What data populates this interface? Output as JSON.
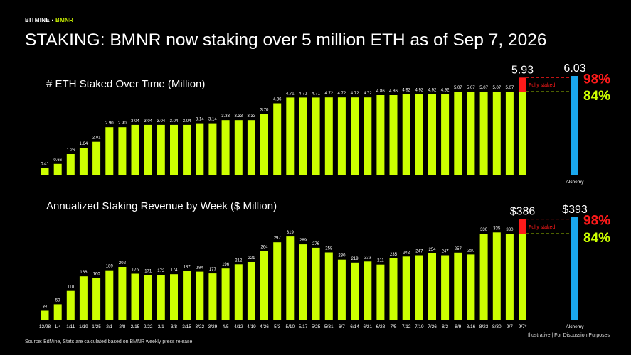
{
  "header": {
    "brand": "BITMINE",
    "brand_sep": " · ",
    "brand_sub": "BMNR",
    "title": "STAKING: BMNR now staking over 5 million ETH as of Sep 7, 2026"
  },
  "footer": {
    "source": "Source: BitMine, Stats are calculated based on BMNR weekly press release.",
    "note": "Illustrative  |  For Discussion Purposes"
  },
  "colors": {
    "bar": "#ccff00",
    "alchemy": "#1aa7ec",
    "fully_staked": "#ff1a1a",
    "pct_84": "#ccff00",
    "pct_98": "#ff1a1a"
  },
  "chart_data": [
    {
      "type": "bar",
      "title": "# ETH Staked Over Time (Million)",
      "categories": [
        "12/28",
        "1/4",
        "1/11",
        "1/19",
        "1/25",
        "2/1",
        "2/8",
        "2/15",
        "2/22",
        "3/1",
        "3/8",
        "3/15",
        "3/22",
        "3/29",
        "4/5",
        "4/12",
        "4/19",
        "4/26",
        "5/3",
        "5/10",
        "5/17",
        "5/25",
        "5/31",
        "6/7",
        "6/14",
        "6/21",
        "6/28",
        "7/5",
        "7/12",
        "7/19",
        "7/26",
        "8/2",
        "8/9",
        "8/16",
        "8/23",
        "8/30",
        "9/7",
        "9/7*"
      ],
      "values": [
        0.41,
        0.66,
        1.26,
        1.64,
        2.01,
        2.9,
        2.9,
        3.04,
        3.04,
        3.04,
        3.04,
        3.04,
        3.14,
        3.14,
        3.33,
        3.33,
        3.33,
        3.7,
        4.36,
        4.71,
        4.71,
        4.71,
        4.72,
        4.72,
        4.72,
        4.72,
        4.86,
        4.86,
        4.92,
        4.92,
        4.92,
        4.92,
        5.07,
        5.07,
        5.07,
        5.07,
        5.07,
        5.07
      ],
      "labels": [
        "0.41",
        "0.66",
        "1.26",
        "1.64",
        "2.01",
        "2.90",
        "2.90",
        "3.04",
        "3.04",
        "3.04",
        "3.04",
        "3.04",
        "3.14",
        "3.14",
        "3.33",
        "3.33",
        "3.33",
        "3.70",
        "4.36",
        "4.71",
        "4.71",
        "4.71",
        "4.72",
        "4.72",
        "4.72",
        "4.72",
        "4.86",
        "4.86",
        "4.92",
        "4.92",
        "4.92",
        "4.92",
        "5.07",
        "5.07",
        "5.07",
        "5.07",
        "5.07",
        ""
      ],
      "fully_staked_value": 5.93,
      "fully_staked_label": "5.93",
      "fully_staked_text": "Fully staked",
      "alchemy": {
        "label": "Alchemy",
        "value": 6.03,
        "value_label": "6.03"
      },
      "pct_high": "98%",
      "pct_low": "84%",
      "ylim": [
        0,
        6.03
      ]
    },
    {
      "type": "bar",
      "title": "Annualized Staking Revenue by Week ($ Million)",
      "values": [
        34,
        59,
        110,
        166,
        160,
        189,
        202,
        176,
        171,
        172,
        174,
        187,
        184,
        177,
        196,
        212,
        221,
        264,
        297,
        319,
        289,
        276,
        258,
        230,
        219,
        223,
        211,
        235,
        242,
        247,
        254,
        247,
        257,
        250,
        330,
        335,
        330,
        330
      ],
      "labels": [
        "34",
        "59",
        "110",
        "166",
        "160",
        "189",
        "202",
        "176",
        "171",
        "172",
        "174",
        "187",
        "184",
        "177",
        "196",
        "212",
        "221",
        "264",
        "297",
        "319",
        "289",
        "276",
        "258",
        "230",
        "219",
        "223",
        "211",
        "235",
        "242",
        "247",
        "254",
        "247",
        "257",
        "250",
        "330",
        "335",
        "330",
        ""
      ],
      "fully_staked_value": 386,
      "fully_staked_label": "$386",
      "fully_staked_text": "Fully staked",
      "alchemy": {
        "label": "Alchemy",
        "value": 393,
        "value_label": "$393"
      },
      "pct_high": "98%",
      "pct_low": "84%",
      "ylim": [
        0,
        393
      ]
    }
  ]
}
